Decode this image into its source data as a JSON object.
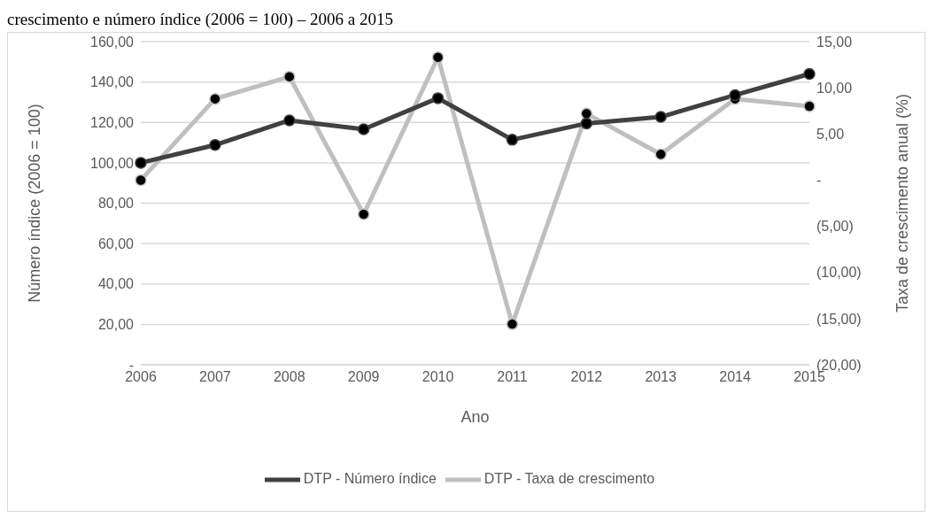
{
  "chart_data": {
    "type": "line",
    "title": "crescimento e número índice (2006 = 100) – 2006 a 2015",
    "xlabel": "Ano",
    "ylabel": "Número índice (2006 = 100)",
    "y2label": "Taxa de crescimento anual (%)",
    "categories": [
      "2006",
      "2007",
      "2008",
      "2009",
      "2010",
      "2011",
      "2012",
      "2013",
      "2014",
      "2015"
    ],
    "series": [
      {
        "name": "DTP - Número índice",
        "color": "#404040",
        "values": [
          100,
          108.8,
          121,
          116.6,
          132,
          111.4,
          119.5,
          122.7,
          133.5,
          144
        ]
      },
      {
        "name": "DTP - Taxa de crescimento",
        "color": "#bfbfbf",
        "axis": "y2",
        "values": [
          0,
          8.8,
          11.2,
          -3.7,
          13.3,
          -15.6,
          7.2,
          2.8,
          8.8,
          8.0
        ]
      }
    ],
    "ylim": [
      0,
      160
    ],
    "yticks": [
      {
        "value": 0,
        "label": "-"
      },
      {
        "value": 20,
        "label": "20,00"
      },
      {
        "value": 40,
        "label": "40,00"
      },
      {
        "value": 60,
        "label": "60,00"
      },
      {
        "value": 80,
        "label": "80,00"
      },
      {
        "value": 100,
        "label": "100,00"
      },
      {
        "value": 120,
        "label": "120,00"
      },
      {
        "value": 140,
        "label": "140,00"
      },
      {
        "value": 160,
        "label": "160,00"
      }
    ],
    "y2lim": [
      -20,
      15
    ],
    "y2ticks": [
      {
        "value": -20,
        "label": "(20,00)"
      },
      {
        "value": -15,
        "label": "(15,00)"
      },
      {
        "value": -10,
        "label": "(10,00)"
      },
      {
        "value": -5,
        "label": "(5,00)"
      },
      {
        "value": 0,
        "label": "-"
      },
      {
        "value": 5,
        "label": "5,00"
      },
      {
        "value": 10,
        "label": "10,00"
      },
      {
        "value": 15,
        "label": "15,00"
      }
    ],
    "grid": "y",
    "legend": "bottom",
    "marker": "circle",
    "line_style": "solid"
  }
}
